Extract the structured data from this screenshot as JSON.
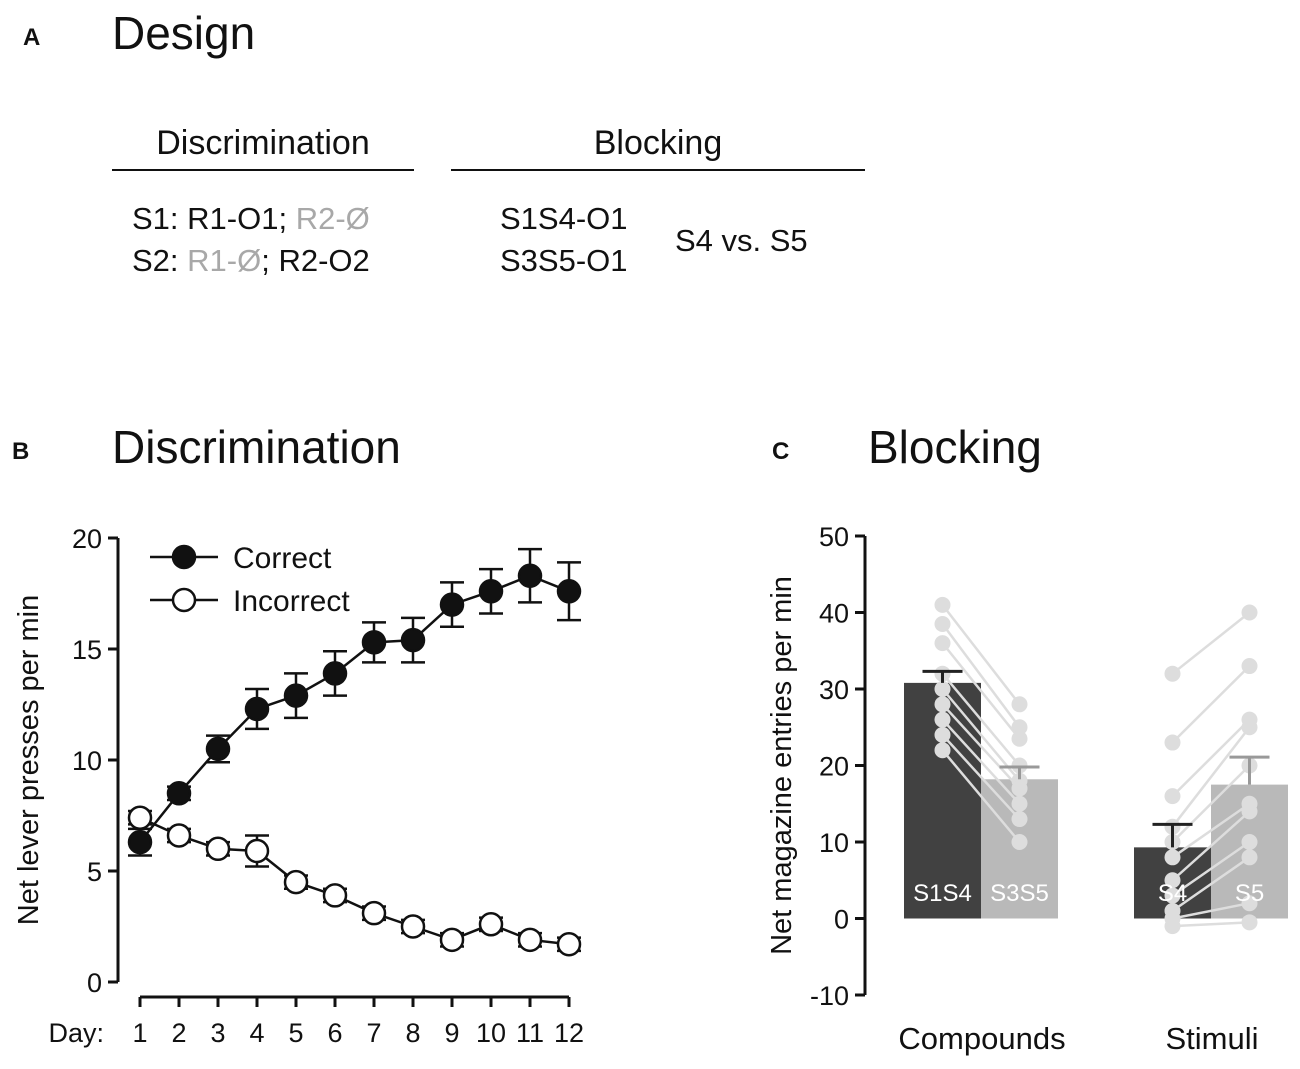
{
  "panel_a": {
    "letter": "A",
    "title": "Design",
    "discrimination": {
      "header": "Discrimination",
      "line1": {
        "stim": "S1: ",
        "active": "R1-O1; ",
        "inactive": "R2-Ø"
      },
      "line2": {
        "stim": "S2: ",
        "inactive": "R1-Ø",
        "sep": "; ",
        "active": "R2-O2"
      }
    },
    "blocking": {
      "header": "Blocking",
      "line1": "S1S4-O1",
      "line2": "S3S5-O1",
      "test": "S4 vs. S5"
    }
  },
  "colors": {
    "dark_bar": "#414141",
    "light_bar": "#b9b9b9",
    "individual": "#dddddd",
    "axis": "#111111"
  },
  "chart_data": [
    {
      "id": "B",
      "letter": "B",
      "type": "line",
      "title": "Discrimination",
      "xlabel": "Day:",
      "ylabel": "Net lever presses per min",
      "x": [
        1,
        2,
        3,
        4,
        5,
        6,
        7,
        8,
        9,
        10,
        11,
        12
      ],
      "ylim": [
        0,
        20
      ],
      "yticks": [
        0,
        5,
        10,
        15,
        20
      ],
      "legend_position": "top-left",
      "series": [
        {
          "name": "Correct",
          "marker": "filled-circle",
          "values": [
            6.3,
            8.5,
            10.5,
            12.3,
            12.9,
            13.9,
            15.3,
            15.4,
            17.0,
            17.6,
            18.3,
            17.6
          ],
          "errors": [
            0.6,
            0.3,
            0.6,
            0.9,
            1.0,
            1.0,
            0.9,
            1.0,
            1.0,
            1.0,
            1.2,
            1.3
          ]
        },
        {
          "name": "Incorrect",
          "marker": "open-circle",
          "values": [
            7.4,
            6.6,
            6.0,
            5.9,
            4.5,
            3.9,
            3.1,
            2.5,
            1.9,
            2.6,
            1.9,
            1.7
          ],
          "errors": [
            0.3,
            0.3,
            0.3,
            0.7,
            0.3,
            0.3,
            0.3,
            0.3,
            0.3,
            0.3,
            0.3,
            0.3
          ]
        }
      ]
    },
    {
      "id": "C",
      "letter": "C",
      "type": "bar",
      "title": "Blocking",
      "ylabel": "Net magazine entries per min",
      "ylim": [
        -10,
        50
      ],
      "yticks": [
        -10,
        0,
        10,
        20,
        30,
        40,
        50
      ],
      "categories": [
        "Compounds",
        "Stimuli"
      ],
      "series": [
        {
          "name": "S1S4",
          "group": "Compounds",
          "value": 30.8,
          "error": 1.5,
          "shade": "dark"
        },
        {
          "name": "S3S5",
          "group": "Compounds",
          "value": 18.2,
          "error": 1.6,
          "shade": "light"
        },
        {
          "name": "S4",
          "group": "Stimuli",
          "value": 9.3,
          "error": 3.0,
          "shade": "dark"
        },
        {
          "name": "S5",
          "group": "Stimuli",
          "value": 17.5,
          "error": 3.6,
          "shade": "light"
        }
      ],
      "individual_pairs": {
        "Compounds": [
          [
            41,
            28
          ],
          [
            38.5,
            25
          ],
          [
            36,
            23.5
          ],
          [
            32,
            20
          ],
          [
            30,
            18
          ],
          [
            28,
            17
          ],
          [
            26,
            15
          ],
          [
            24,
            13
          ],
          [
            22,
            10
          ]
        ],
        "Stimuli": [
          [
            32,
            40
          ],
          [
            23,
            33
          ],
          [
            16,
            26
          ],
          [
            12,
            25
          ],
          [
            10,
            20
          ],
          [
            8,
            15
          ],
          [
            5,
            14
          ],
          [
            3,
            10
          ],
          [
            1,
            8
          ],
          [
            0,
            2
          ],
          [
            -1,
            -0.5
          ]
        ]
      }
    }
  ]
}
